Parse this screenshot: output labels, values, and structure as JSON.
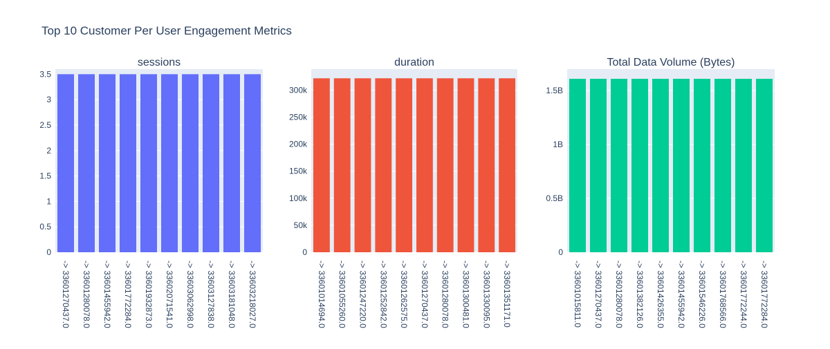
{
  "title": "Top 10 Customer Per User Engagement Metrics",
  "chart_data": [
    {
      "type": "bar",
      "title": "sessions",
      "color": "#636efa",
      "categories": [
        "-> 33601270437.0",
        "-> 33601280078.0",
        "-> 33601455942.0",
        "-> 33601772284.0",
        "-> 33601932873.0",
        "-> 33602071541.0",
        "-> 33603062998.0",
        "-> 33603127838.0",
        "-> 33603181048.0",
        "-> 33603218027.0"
      ],
      "values": [
        3.5,
        3.5,
        3.5,
        3.5,
        3.5,
        3.5,
        3.5,
        3.5,
        3.5,
        3.5
      ],
      "ylim": [
        0,
        3.6
      ],
      "yticks": [
        0,
        0.5,
        1,
        1.5,
        2,
        2.5,
        3,
        3.5
      ],
      "ytick_labels": [
        "0",
        "0.5",
        "1",
        "1.5",
        "2",
        "2.5",
        "3",
        "3.5"
      ]
    },
    {
      "type": "bar",
      "title": "duration",
      "color": "#ef553b",
      "categories": [
        "-> 33601014694.0",
        "-> 33601055260.0",
        "-> 33601247220.0",
        "-> 33601252842.0",
        "-> 33601262575.0",
        "-> 33601270437.0",
        "-> 33601280078.0",
        "-> 33601300481.0",
        "-> 33601330095.0",
        "-> 33601351171.0"
      ],
      "values": [
        322000,
        322000,
        322000,
        322000,
        322000,
        322000,
        322000,
        322000,
        322000,
        322000
      ],
      "ylim": [
        0,
        339000
      ],
      "yticks": [
        0,
        50000,
        100000,
        150000,
        200000,
        250000,
        300000
      ],
      "ytick_labels": [
        "0",
        "50k",
        "100k",
        "150k",
        "200k",
        "250k",
        "300k"
      ]
    },
    {
      "type": "bar",
      "title": "Total Data Volume (Bytes)",
      "color": "#00cc96",
      "categories": [
        "-> 33601015811.0",
        "-> 33601270437.0",
        "-> 33601280078.0",
        "-> 33601382126.0",
        "-> 33601426355.0",
        "-> 33601455942.0",
        "-> 33601546226.0",
        "-> 33601768566.0",
        "-> 33601772244.0",
        "-> 33601772284.0"
      ],
      "values": [
        1610000000,
        1610000000,
        1610000000,
        1610000000,
        1610000000,
        1610000000,
        1610000000,
        1610000000,
        1610000000,
        1610000000
      ],
      "ylim": [
        0,
        1700000000
      ],
      "yticks": [
        0,
        500000000,
        1000000000,
        1500000000
      ],
      "ytick_labels": [
        "0",
        "0.5B",
        "1B",
        "1.5B"
      ]
    }
  ]
}
